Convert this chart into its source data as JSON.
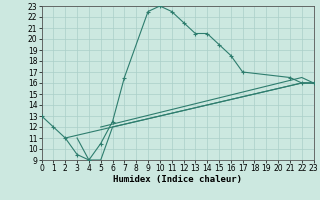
{
  "title": "",
  "xlabel": "Humidex (Indice chaleur)",
  "bg_color": "#cce8e0",
  "line_color": "#2e7d6e",
  "grid_color": "#aacfc8",
  "xlim": [
    0,
    23
  ],
  "ylim": [
    9,
    23
  ],
  "xticks": [
    0,
    1,
    2,
    3,
    4,
    5,
    6,
    7,
    8,
    9,
    10,
    11,
    12,
    13,
    14,
    15,
    16,
    17,
    18,
    19,
    20,
    21,
    22,
    23
  ],
  "yticks": [
    9,
    10,
    11,
    12,
    13,
    14,
    15,
    16,
    17,
    18,
    19,
    20,
    21,
    22,
    23
  ],
  "series": [
    {
      "x": [
        0,
        1,
        2,
        3,
        4,
        5,
        6,
        7,
        9,
        10,
        11,
        12,
        13,
        14,
        15,
        16,
        17,
        21,
        22,
        23
      ],
      "y": [
        13,
        12,
        11,
        9.5,
        9,
        10.5,
        12.5,
        16.5,
        22.5,
        23,
        22.5,
        21.5,
        20.5,
        20.5,
        19.5,
        18.5,
        17,
        16.5,
        16,
        16
      ],
      "has_marker": true
    },
    {
      "x": [
        3,
        4,
        5,
        6,
        22,
        23
      ],
      "y": [
        11,
        9,
        9,
        12,
        16,
        16
      ],
      "has_marker": false
    },
    {
      "x": [
        2,
        22,
        23
      ],
      "y": [
        11,
        16,
        16
      ],
      "has_marker": false
    },
    {
      "x": [
        5,
        22,
        23
      ],
      "y": [
        12,
        16.5,
        16
      ],
      "has_marker": false
    }
  ],
  "tick_fontsize": 5.5,
  "xlabel_fontsize": 6.5,
  "linewidth": 0.8
}
